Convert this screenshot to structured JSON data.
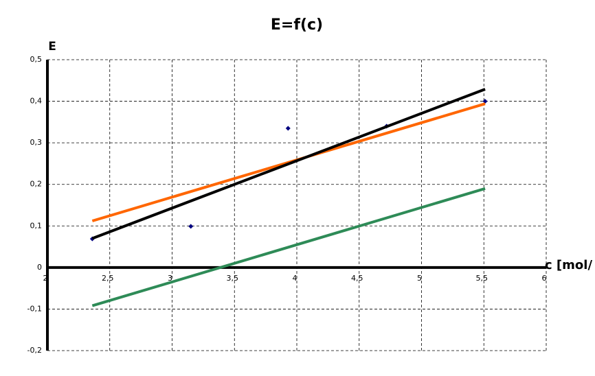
{
  "chart_data": {
    "type": "scatter",
    "title": "E=f(c)",
    "y_label": "E",
    "x_label": "c [mol/",
    "xlim": [
      2,
      6
    ],
    "ylim": [
      -0.2,
      0.5
    ],
    "grid": true,
    "xticks": [
      2,
      {
        "value": 2.5,
        "label": "2,5"
      },
      3,
      {
        "value": 3.5,
        "label": "3,5"
      },
      4,
      {
        "value": 4.5,
        "label": "4,5"
      },
      5,
      {
        "value": 5.5,
        "label": "5,5"
      },
      6
    ],
    "yticks": [
      {
        "value": -0.2,
        "label": "-0,2"
      },
      {
        "value": -0.1,
        "label": "-0,1"
      },
      0,
      {
        "value": 0.1,
        "label": "0,1"
      },
      {
        "value": 0.2,
        "label": "0,2"
      },
      {
        "value": 0.3,
        "label": "0,3"
      },
      {
        "value": 0.4,
        "label": "0,4"
      },
      {
        "value": 0.5,
        "label": "0,5"
      }
    ],
    "series": [
      {
        "mode": "markers",
        "color": "#000080",
        "x": [
          2.36,
          3.15,
          3.93,
          4.72,
          5.51
        ],
        "values": [
          0.069,
          0.099,
          0.335,
          0.34,
          0.4
        ]
      },
      {
        "mode": "line",
        "color": "#ff6600",
        "x": [
          2.36,
          5.51
        ],
        "values": [
          0.112,
          0.394
        ]
      },
      {
        "mode": "line",
        "color": "#2e8b57",
        "x": [
          2.36,
          5.51
        ],
        "values": [
          -0.092,
          0.19
        ]
      },
      {
        "mode": "line",
        "color": "#000000",
        "x": [
          2.36,
          5.51
        ],
        "values": [
          0.07,
          0.429
        ]
      }
    ]
  }
}
